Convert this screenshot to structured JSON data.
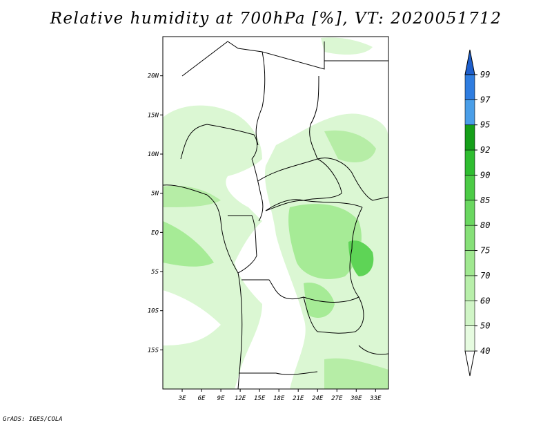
{
  "title": "Relative humidity at 700hPa [%], VT: 2020051712",
  "credit": "GrADS: IGES/COLA",
  "map": {
    "lon_range": [
      0,
      35
    ],
    "lat_range": [
      -20,
      25
    ],
    "x_ticks": [
      "3E",
      "6E",
      "9E",
      "12E",
      "15E",
      "18E",
      "21E",
      "24E",
      "27E",
      "30E",
      "33E"
    ],
    "x_tick_values": [
      3,
      6,
      9,
      12,
      15,
      18,
      21,
      24,
      27,
      30,
      33
    ],
    "y_ticks": [
      "20N",
      "15N",
      "10N",
      "5N",
      "EQ",
      "5S",
      "10S",
      "15S"
    ],
    "y_tick_values": [
      20,
      15,
      10,
      5,
      0,
      -5,
      -10,
      -15
    ]
  },
  "legend": {
    "levels": [
      "40",
      "50",
      "60",
      "70",
      "75",
      "80",
      "85",
      "90",
      "92",
      "95",
      "97",
      "99"
    ],
    "colors": [
      "#ffffff",
      "#e6fbe0",
      "#d0f5c6",
      "#b8efaa",
      "#a0e890",
      "#86e078",
      "#6ad760",
      "#4ccb46",
      "#2fbd30",
      "#159f19",
      "#4a9ee8",
      "#2f7de0",
      "#1e5fcc"
    ]
  },
  "colors": {
    "land_outline": "#000000",
    "light_green": "#d8f6d0",
    "mid_green": "#a6eb96",
    "dark_green": "#5ed456"
  }
}
